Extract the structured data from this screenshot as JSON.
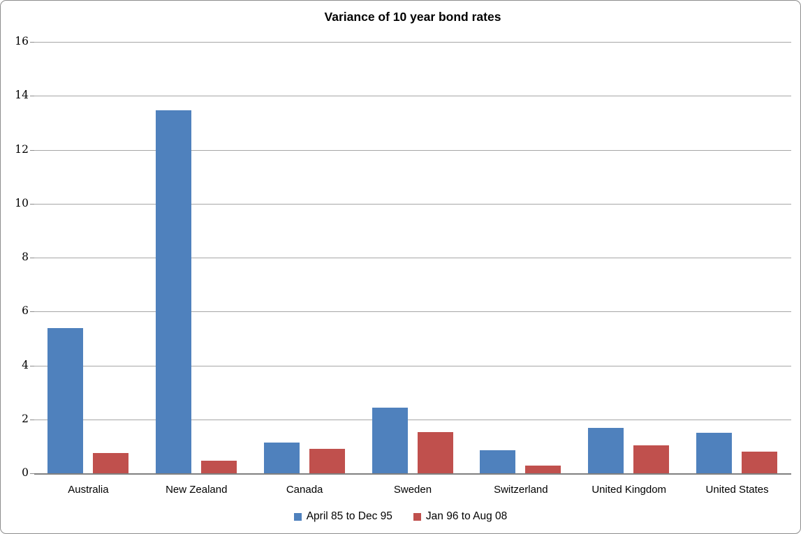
{
  "chart_data": {
    "type": "bar",
    "title": "Variance of 10 year bond rates",
    "categories": [
      "Australia",
      "New Zealand",
      "Canada",
      "Sweden",
      "Switzerland",
      "United Kingdom",
      "United States"
    ],
    "series": [
      {
        "name": "April 85 to Dec 95",
        "color": "#4f81bd",
        "values": [
          5.4,
          13.5,
          1.17,
          2.45,
          0.87,
          1.72,
          1.53
        ]
      },
      {
        "name": "Jan 96 to Aug 08",
        "color": "#c0504d",
        "values": [
          0.78,
          0.48,
          0.94,
          1.55,
          0.32,
          1.07,
          0.82
        ]
      }
    ],
    "xlabel": "",
    "ylabel": "",
    "ylim": [
      0,
      16
    ],
    "yticks": [
      0,
      2,
      4,
      6,
      8,
      10,
      12,
      14,
      16
    ],
    "grid": "horizontal",
    "legend_position": "bottom"
  },
  "colors": {
    "plot_gridline": "#a6a6a6",
    "axis_line": "#808080",
    "chart_border": "#8c8c8c",
    "background": "#ffffff",
    "text": "#000000",
    "series_blue": "#4f81bd",
    "series_red": "#c0504d"
  }
}
